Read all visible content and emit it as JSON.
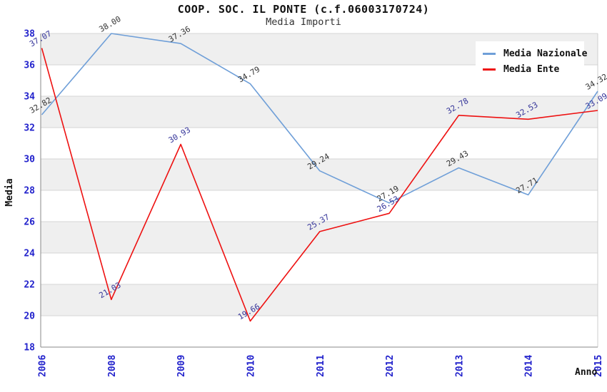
{
  "header": {
    "title": "COOP. SOC. IL PONTE (c.f.06003170724)",
    "subtitle": "Media Importi"
  },
  "chart_data": {
    "type": "line",
    "title": "COOP. SOC. IL PONTE (c.f.06003170724)",
    "subtitle": "Media Importi",
    "xlabel": "Anno",
    "ylabel": "Media",
    "categories": [
      "2006",
      "2008",
      "2009",
      "2010",
      "2011",
      "2012",
      "2013",
      "2014",
      "2015"
    ],
    "ylim": [
      18,
      38
    ],
    "yticks": [
      18,
      20,
      22,
      24,
      26,
      28,
      30,
      32,
      34,
      36,
      38
    ],
    "grid": true,
    "alternating_bands": true,
    "legend_position": "top-right",
    "series": [
      {
        "name": "Media Nazionale",
        "color": "#6f9fd8",
        "label_color": "#333333",
        "values": [
          32.82,
          38.0,
          37.36,
          34.79,
          29.24,
          27.19,
          29.43,
          27.71,
          34.32
        ]
      },
      {
        "name": "Media Ente",
        "color": "#ee1111",
        "label_color": "#333399",
        "values": [
          37.07,
          21.03,
          30.93,
          19.66,
          25.37,
          26.53,
          32.78,
          32.53,
          33.09
        ]
      }
    ],
    "colors": {
      "tick_labels": "#2222cc",
      "band_fill": "#efefef",
      "gridline": "#d4d4d4",
      "axis_line": "#8a8a8a",
      "plot_border_right": "#cccccc",
      "background": "#ffffff"
    }
  }
}
